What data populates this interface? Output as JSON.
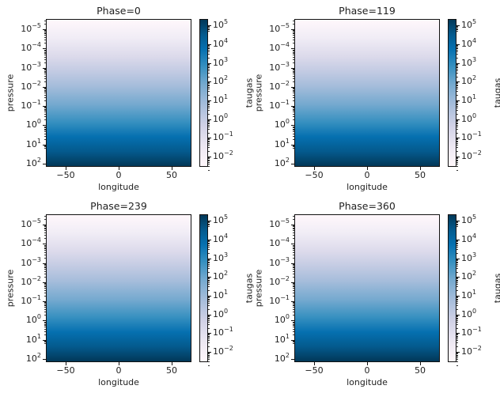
{
  "chart_data": [
    {
      "type": "heatmap",
      "title": "Phase=0",
      "xlabel": "longitude",
      "ylabel": "pressure",
      "xticks": [
        -50,
        0,
        50
      ],
      "xlim": [
        -68,
        68
      ],
      "yscale": "log",
      "yticks": [
        "10^-5",
        "10^-4",
        "10^-3",
        "10^-2",
        "10^-1",
        "10^0",
        "10^1",
        "10^2"
      ],
      "ylim": [
        100,
        3e-06
      ],
      "colorbar": {
        "label": "taugas",
        "scale": "log",
        "ticks": [
          "10^5",
          "10^4",
          "10^3",
          "10^2",
          "10^1",
          "10^0",
          "10^-1",
          "10^-2"
        ],
        "range": [
          0.003,
          200000.0
        ],
        "colormap": "PuBu"
      },
      "description": "taugas increases monotonically with pressure; uniform across longitude"
    },
    {
      "type": "heatmap",
      "title": "Phase=119",
      "xlabel": "longitude",
      "ylabel": "pressure",
      "xticks": [
        -50,
        0,
        50
      ],
      "xlim": [
        -68,
        68
      ],
      "yscale": "log",
      "yticks": [
        "10^-5",
        "10^-4",
        "10^-3",
        "10^-2",
        "10^-1",
        "10^0",
        "10^1",
        "10^2"
      ],
      "ylim": [
        100,
        3e-06
      ],
      "colorbar": {
        "label": "taugas",
        "scale": "log",
        "ticks": [
          "10^5",
          "10^4",
          "10^3",
          "10^2",
          "10^1",
          "10^0",
          "10^-1",
          "10^-2"
        ],
        "range": [
          0.003,
          200000.0
        ],
        "colormap": "PuBu"
      },
      "description": "taugas increases monotonically with pressure; uniform across longitude"
    },
    {
      "type": "heatmap",
      "title": "Phase=239",
      "xlabel": "longitude",
      "ylabel": "pressure",
      "xticks": [
        -50,
        0,
        50
      ],
      "xlim": [
        -68,
        68
      ],
      "yscale": "log",
      "yticks": [
        "10^-5",
        "10^-4",
        "10^-3",
        "10^-2",
        "10^-1",
        "10^0",
        "10^1",
        "10^2"
      ],
      "ylim": [
        100,
        3e-06
      ],
      "colorbar": {
        "label": "taugas",
        "scale": "log",
        "ticks": [
          "10^5",
          "10^4",
          "10^3",
          "10^2",
          "10^1",
          "10^0",
          "10^-1",
          "10^-2"
        ],
        "range": [
          0.003,
          200000.0
        ],
        "colormap": "PuBu"
      },
      "description": "taugas increases monotonically with pressure; uniform across longitude"
    },
    {
      "type": "heatmap",
      "title": "Phase=360",
      "xlabel": "longitude",
      "ylabel": "pressure",
      "xticks": [
        -50,
        0,
        50
      ],
      "xlim": [
        -68,
        68
      ],
      "yscale": "log",
      "yticks": [
        "10^-5",
        "10^-4",
        "10^-3",
        "10^-2",
        "10^-1",
        "10^0",
        "10^1",
        "10^2"
      ],
      "ylim": [
        100,
        3e-06
      ],
      "colorbar": {
        "label": "taugas",
        "scale": "log",
        "ticks": [
          "10^5",
          "10^4",
          "10^3",
          "10^2",
          "10^1",
          "10^0",
          "10^-1",
          "10^-2"
        ],
        "range": [
          0.003,
          200000.0
        ],
        "colormap": "PuBu"
      },
      "description": "taugas increases monotonically with pressure; uniform across longitude"
    }
  ],
  "panels": [
    {
      "title": "Phase=0"
    },
    {
      "title": "Phase=119"
    },
    {
      "title": "Phase=239"
    },
    {
      "title": "Phase=360"
    }
  ],
  "axes": {
    "xlabel": "longitude",
    "ylabel": "pressure",
    "cbar_label": "taugas",
    "xticks": [
      "−50",
      "0",
      "50"
    ],
    "ytick_base": "10",
    "ytick_exps": [
      "−5",
      "−4",
      "−3",
      "−2",
      "−1",
      "0",
      "1",
      "2"
    ],
    "ctick_base": "10",
    "ctick_exps": [
      "5",
      "4",
      "3",
      "2",
      "1",
      "0",
      "−1",
      "−2"
    ]
  }
}
